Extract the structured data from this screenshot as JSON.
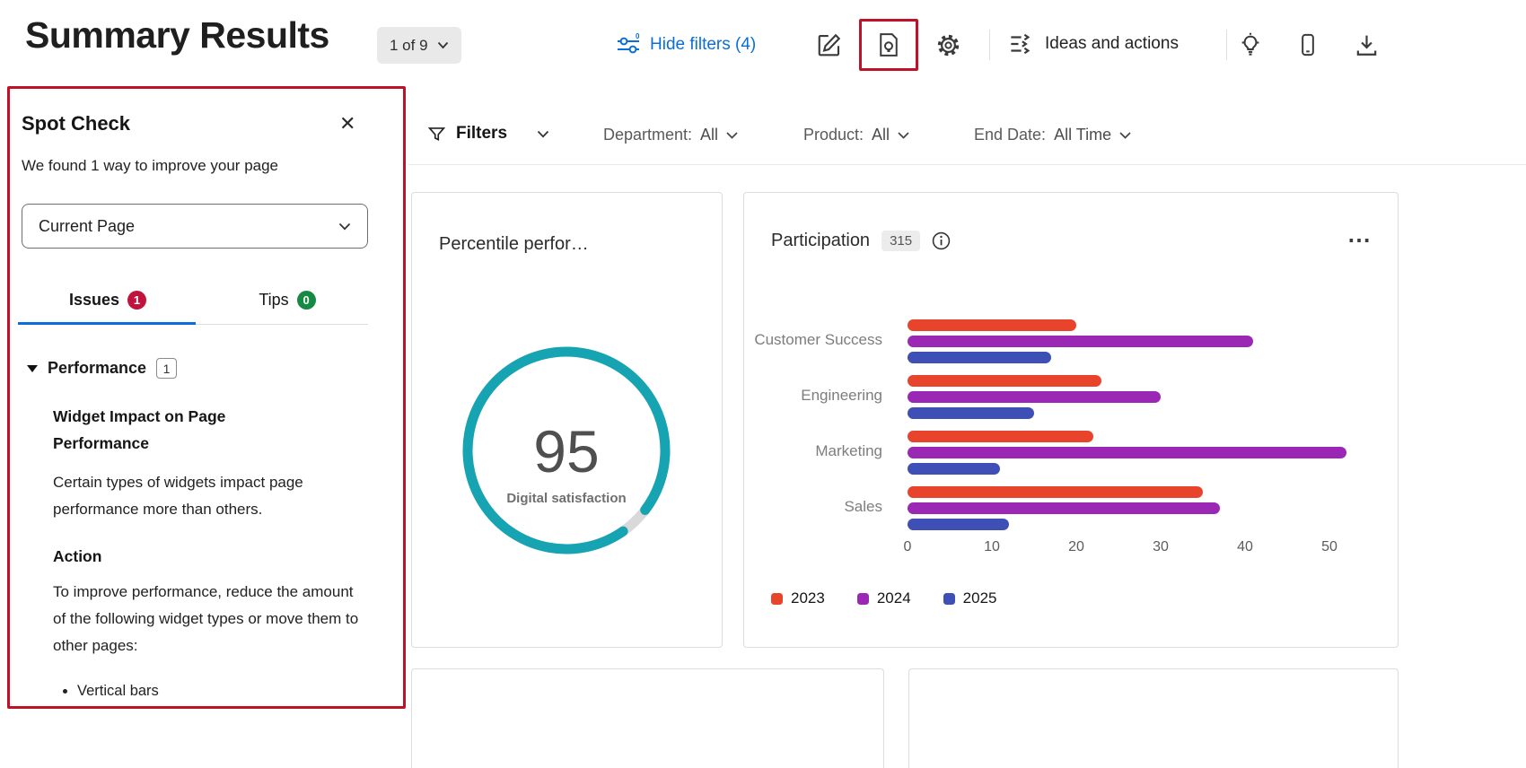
{
  "colors": {
    "accent_blue": "#0a6ddb",
    "teal": "#16a3b2",
    "annotation_red": "#bf1228",
    "issue_badge_red": "#c0143c",
    "tips_badge_green": "#168a43"
  },
  "header": {
    "title": "Summary Results",
    "pager_label": "1 of 9",
    "hide_filters_label": "Hide filters (4)",
    "ideas_actions_label": "Ideas and actions"
  },
  "spot_check": {
    "title": "Spot Check",
    "subtitle": "We found 1 way to improve your page",
    "scope_select": "Current Page",
    "tabs": [
      {
        "label": "Issues",
        "badge": "1"
      },
      {
        "label": "Tips",
        "badge": "0"
      }
    ],
    "section": {
      "label": "Performance",
      "badge": "1"
    },
    "issue_title": "Widget Impact on Page Performance",
    "issue_body": "Certain types of widgets impact page performance more than others.",
    "action_label": "Action",
    "action_body": "To improve performance, reduce the amount of the following widget types or move them to other pages:",
    "action_items": [
      "Vertical bars"
    ]
  },
  "filters_bar": {
    "label": "Filters",
    "filters": [
      {
        "name": "Department:",
        "value": "All"
      },
      {
        "name": "Product:",
        "value": "All"
      },
      {
        "name": "End Date:",
        "value": "All Time"
      }
    ]
  },
  "cards": {
    "participation_badge": "315"
  },
  "chart_data": [
    {
      "type": "gauge",
      "title": "Percentile perfor…",
      "value": 95,
      "max": 100,
      "label": "Digital satisfaction",
      "color": "#16a3b2"
    },
    {
      "type": "bar",
      "orientation": "horizontal",
      "title": "Participation",
      "categories": [
        "Customer Success",
        "Engineering",
        "Marketing",
        "Sales"
      ],
      "series": [
        {
          "name": "2023",
          "color": "#e8442c",
          "values": [
            20,
            23,
            22,
            35
          ]
        },
        {
          "name": "2024",
          "color": "#9b28b5",
          "values": [
            41,
            30,
            52,
            37
          ]
        },
        {
          "name": "2025",
          "color": "#3e4fb5",
          "values": [
            17,
            15,
            11,
            12
          ]
        }
      ],
      "xlim": [
        0,
        55
      ],
      "xticks": [
        0,
        10,
        20,
        30,
        40,
        50
      ],
      "grid": false,
      "legend_position": "bottom"
    }
  ],
  "icons": {
    "close": "✕",
    "more_options": "⋯"
  }
}
